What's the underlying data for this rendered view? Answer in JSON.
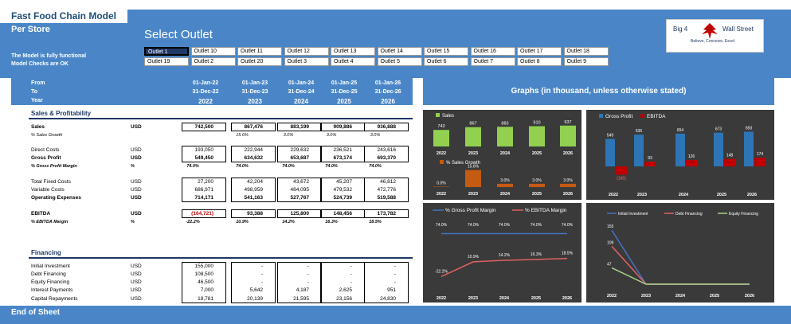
{
  "header": {
    "title": "Fast Food Chain Model",
    "per_store": "Per Store",
    "select_outlet": "Select Outlet",
    "note1": "The Model is fully functional",
    "note2": "Model Checks are OK"
  },
  "outlets": {
    "row1": [
      "Outlet 1",
      "Outlet 10",
      "Outlet 11",
      "Outlet 12",
      "Outlet 13",
      "Outlet 14",
      "Outlet 15",
      "Outlet 16",
      "Outlet 17",
      "Outlet 18"
    ],
    "row2": [
      "Outlet 19",
      "Outlet 2",
      "Outlet 20",
      "Outlet 3",
      "Outlet 4",
      "Outlet 5",
      "Outlet 6",
      "Outlet 7",
      "Outlet 8",
      "Outlet 9"
    ],
    "selected": "Outlet 1"
  },
  "logo": {
    "left": "Big 4",
    "right": "Wall Street",
    "tagline": "Believe, Conceive, Excel"
  },
  "periods": {
    "from_label": "From",
    "to_label": "To",
    "year_label": "Year",
    "from": [
      "01-Jan-22",
      "01-Jan-23",
      "01-Jan-24",
      "01-Jan-25",
      "01-Jan-26"
    ],
    "to": [
      "31-Dec-22",
      "31-Dec-23",
      "31-Dec-24",
      "31-Dec-25",
      "31-Dec-26"
    ],
    "year": [
      "2022",
      "2023",
      "2024",
      "2025",
      "2026"
    ]
  },
  "sales_section": {
    "title": "Sales & Profitability",
    "rows": [
      {
        "label": "Sales",
        "unit": "USD",
        "values": [
          "742,500",
          "867,476",
          "883,199",
          "909,886",
          "936,888"
        ]
      },
      {
        "label": "% Sales Growth",
        "unit": "",
        "values": [
          "",
          "15.6%",
          "3.0%",
          "3.0%",
          "3.0%"
        ]
      },
      {
        "label": "Direct Costs",
        "unit": "USD",
        "values": [
          "193,050",
          "222,944",
          "229,632",
          "236,521",
          "243,616"
        ]
      },
      {
        "label": "Gross Profit",
        "unit": "USD",
        "values": [
          "549,450",
          "634,632",
          "653,687",
          "673,174",
          "693,370"
        ]
      },
      {
        "label": "% Gross Profit Margin",
        "unit": "%",
        "values": [
          "74.0%",
          "74.0%",
          "74.0%",
          "74.0%",
          "74.0%"
        ]
      },
      {
        "label": "Total Fixed Costs",
        "unit": "USD",
        "values": [
          "27,200",
          "42,204",
          "43,672",
          "45,207",
          "46,812"
        ]
      },
      {
        "label": "Variable Costs",
        "unit": "USD",
        "values": [
          "686,971",
          "498,959",
          "484,095",
          "479,532",
          "472,776"
        ]
      },
      {
        "label": "Operating Expenses",
        "unit": "USD",
        "values": [
          "714,171",
          "541,163",
          "527,767",
          "524,739",
          "519,588"
        ]
      },
      {
        "label": "EBITDA",
        "unit": "USD",
        "values": [
          "(164,721)",
          "93,388",
          "125,800",
          "148,456",
          "173,782"
        ]
      },
      {
        "label": "% EBITDA Margin",
        "unit": "%",
        "values": [
          "-22.2%",
          "10.9%",
          "14.2%",
          "16.3%",
          "18.5%"
        ]
      }
    ]
  },
  "financing_section": {
    "title": "Financing",
    "rows": [
      {
        "label": "Initial Investment",
        "unit": "USD",
        "values": [
          "155,000",
          "-",
          "-",
          "-",
          "-"
        ]
      },
      {
        "label": "Debt Financing",
        "unit": "USD",
        "values": [
          "108,500",
          "-",
          "-",
          "-",
          "-"
        ]
      },
      {
        "label": "Equity Financing",
        "unit": "USD",
        "values": [
          "46,500",
          "-",
          "-",
          "-",
          "-"
        ]
      },
      {
        "label": "Interest Payments",
        "unit": "USD",
        "values": [
          "7,000",
          "5,642",
          "4,187",
          "2,625",
          "951"
        ]
      },
      {
        "label": "Capital Repayments",
        "unit": "USD",
        "values": [
          "18,781",
          "20,139",
          "21,595",
          "23,156",
          "24,830"
        ]
      }
    ]
  },
  "graphs_title": "Graphs (in thousand, unless otherwise stated)",
  "footer": "End of Sheet",
  "chart_data": [
    {
      "type": "bar",
      "categories": [
        "2022",
        "2023",
        "2024",
        "2025",
        "2026"
      ],
      "series": [
        {
          "name": "Sales",
          "values": [
            743,
            867,
            883,
            910,
            937
          ]
        }
      ],
      "color": "#92d050"
    },
    {
      "type": "bar",
      "categories": [
        "2022",
        "2023",
        "2024",
        "2025",
        "2026"
      ],
      "series": [
        {
          "name": "% Sales Growth",
          "values": [
            0.0,
            15.6,
            3.0,
            3.0,
            3.0
          ]
        }
      ],
      "data_labels": [
        "0.0%",
        "15.6%",
        "3.0%",
        "3.0%",
        "3.0%"
      ],
      "color": "#c55a11"
    },
    {
      "type": "bar",
      "categories": [
        "2022",
        "2023",
        "2024",
        "2025",
        "2026"
      ],
      "series": [
        {
          "name": "Gross Profit",
          "values": [
            549,
            635,
            654,
            673,
            693
          ]
        },
        {
          "name": "EBITDA",
          "values": [
            -165,
            93,
            126,
            148,
            174
          ]
        }
      ],
      "data_labels": [
        [
          "549",
          "635",
          "654",
          "673",
          "693"
        ],
        [
          "(165)",
          "93",
          "126",
          "148",
          "174"
        ]
      ],
      "colors": [
        "#2e75b6",
        "#c00000"
      ]
    },
    {
      "type": "line",
      "categories": [
        "2022",
        "2023",
        "2024",
        "2025",
        "2026"
      ],
      "series": [
        {
          "name": "% Gross Profit Margin",
          "values": [
            74.0,
            74.0,
            74.0,
            74.0,
            74.0
          ]
        },
        {
          "name": "% EBITDA Margin",
          "values": [
            -22.2,
            10.9,
            14.2,
            16.3,
            18.5
          ]
        }
      ],
      "data_labels": [
        [
          "74.0%",
          "74.0%",
          "74.0%",
          "74.0%",
          "74.0%"
        ],
        [
          "-22.2%",
          "10.9%",
          "14.2%",
          "16.3%",
          "18.5%"
        ]
      ],
      "colors": [
        "#4472c4",
        "#e06060"
      ]
    },
    {
      "type": "line",
      "categories": [
        "2022",
        "2023",
        "2024",
        "2025",
        "2026"
      ],
      "series": [
        {
          "name": "Initial Investment",
          "values": [
            155,
            0,
            0,
            0,
            0
          ]
        },
        {
          "name": "Debt Financing",
          "values": [
            109,
            0,
            0,
            0,
            0
          ]
        },
        {
          "name": "Equity Financing",
          "values": [
            47,
            0,
            0,
            0,
            0
          ]
        }
      ],
      "data_labels": [
        [
          "155",
          "",
          "",
          "",
          ""
        ],
        [
          "109",
          "",
          "",
          "",
          ""
        ],
        [
          "47",
          "",
          "",
          "",
          ""
        ]
      ],
      "colors": [
        "#4472c4",
        "#e06060",
        "#a9d18e"
      ]
    }
  ]
}
